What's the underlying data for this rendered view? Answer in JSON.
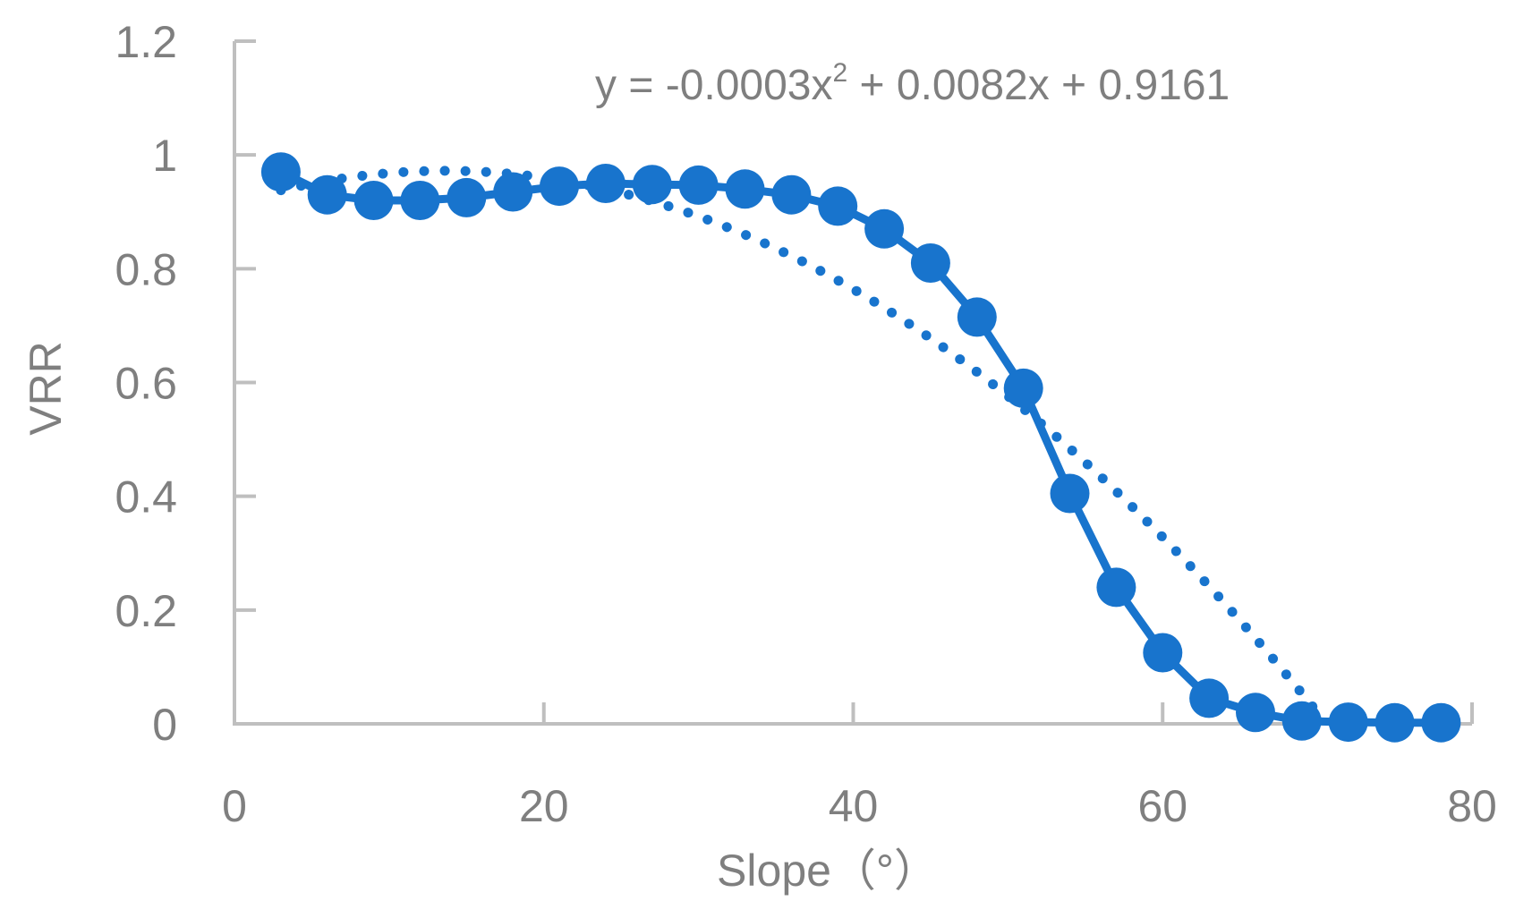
{
  "chart_data": {
    "type": "scatter",
    "xlabel": "Slope（°）",
    "ylabel": "VRR",
    "xlim": [
      0,
      80
    ],
    "ylim": [
      0,
      1.2
    ],
    "x_ticks": [
      "0",
      "20",
      "40",
      "60",
      "80"
    ],
    "y_ticks": [
      "0",
      "0.2",
      "0.4",
      "0.6",
      "0.8",
      "1",
      "1.2"
    ],
    "grid": false,
    "legend": "none",
    "series": [
      {
        "style": "line-markers",
        "color": "#1874cd",
        "x": [
          3,
          6,
          9,
          12,
          15,
          18,
          21,
          24,
          27,
          30,
          33,
          36,
          39,
          42,
          45,
          48,
          51,
          54,
          57,
          60,
          63,
          66,
          69,
          72,
          75,
          78
        ],
        "y": [
          0.97,
          0.93,
          0.92,
          0.92,
          0.925,
          0.935,
          0.945,
          0.95,
          0.948,
          0.947,
          0.94,
          0.93,
          0.91,
          0.87,
          0.81,
          0.715,
          0.59,
          0.405,
          0.24,
          0.125,
          0.045,
          0.02,
          0.005,
          0.003,
          0.002,
          0.002
        ]
      }
    ],
    "trendline": {
      "type": "polynomial",
      "order": 2,
      "style": "dotted",
      "color": "#1874cd",
      "x_range": [
        3,
        70
      ],
      "equation_parts": {
        "prefix": "y = -0.0003x",
        "superscript": "2",
        "suffix": " + 0.0082x + 0.9161"
      }
    }
  }
}
